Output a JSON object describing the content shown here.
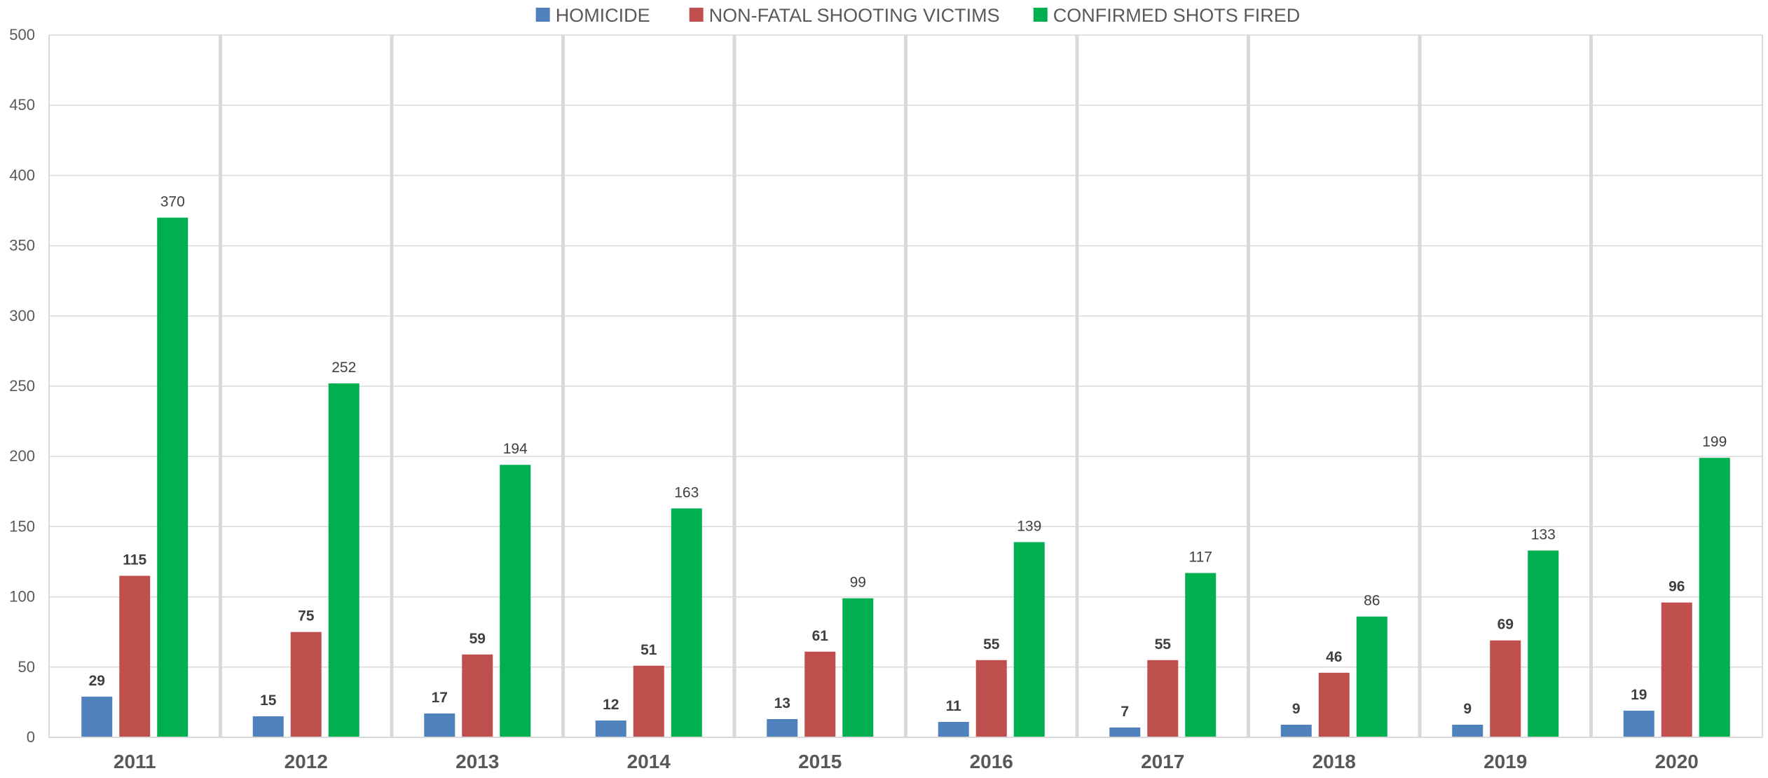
{
  "chart_data": {
    "type": "bar",
    "categories": [
      "2011",
      "2012",
      "2013",
      "2014",
      "2015",
      "2016",
      "2017",
      "2018",
      "2019",
      "2020"
    ],
    "series": [
      {
        "name": "HOMICIDE",
        "color": "#4f81bd",
        "values": [
          29,
          15,
          17,
          12,
          13,
          11,
          7,
          9,
          9,
          19
        ],
        "label_weight": "bold"
      },
      {
        "name": "NON-FATAL SHOOTING VICTIMS",
        "color": "#c0504d",
        "values": [
          115,
          75,
          59,
          51,
          61,
          55,
          55,
          46,
          69,
          96
        ],
        "label_weight": "bold"
      },
      {
        "name": "CONFIRMED SHOTS FIRED",
        "color": "#00b050",
        "values": [
          370,
          252,
          194,
          163,
          99,
          139,
          117,
          86,
          133,
          199
        ],
        "label_weight": "normal"
      }
    ],
    "yticks": [
      "0",
      "50",
      "100",
      "150",
      "200",
      "250",
      "300",
      "350",
      "400",
      "450",
      "500"
    ],
    "ylim": [
      0,
      500
    ],
    "grid": true,
    "legend": "top-center"
  }
}
